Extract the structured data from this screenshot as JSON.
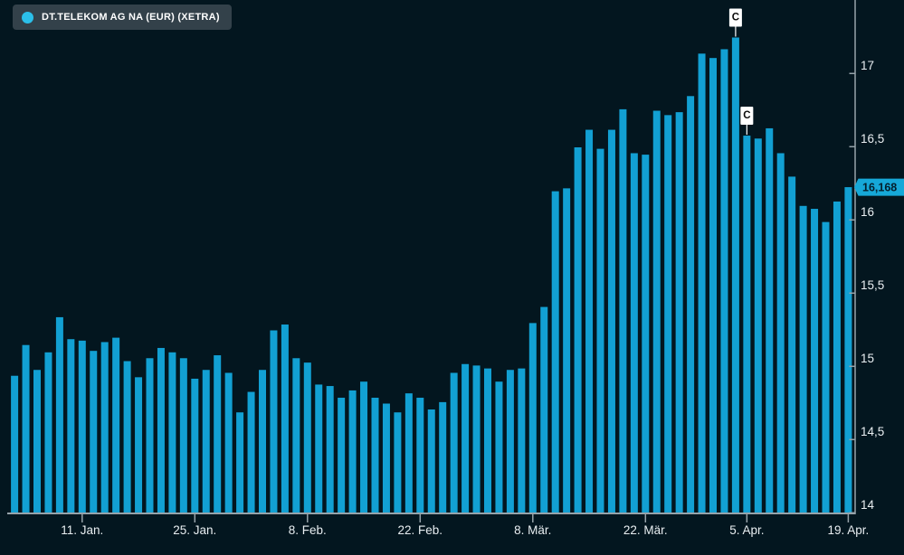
{
  "legend": {
    "label": "DT.TELEKOM AG NA (EUR) (XETRA)"
  },
  "price_label": {
    "display": "16,168"
  },
  "colors": {
    "background": "#03161f",
    "bar": "#12a0d3",
    "axis": "#97a3aa",
    "label_text": "#e8eef1",
    "legend_bg": "#33414a",
    "legend_text": "#ffffff",
    "legend_dot": "#2bbfe9",
    "price_label_bg": "#16a8d8",
    "price_label_text": "#04202e",
    "marker_bg": "#ffffff",
    "marker_text": "#0a0a0a",
    "marker_line": "#ffffff"
  },
  "chart_data": {
    "type": "bar",
    "title": "DT.TELEKOM AG NA (EUR) (XETRA)",
    "xlabel": "",
    "ylabel": "",
    "grid": false,
    "legend_position": "top-left",
    "axis_side": "right",
    "ylim": [
      13.94,
      17.45
    ],
    "values": [
      14.88,
      15.09,
      14.92,
      15.04,
      15.28,
      15.13,
      15.12,
      15.05,
      15.11,
      15.14,
      14.98,
      14.87,
      15.0,
      15.07,
      15.04,
      15.0,
      14.86,
      14.92,
      15.02,
      14.9,
      14.63,
      14.77,
      14.92,
      15.19,
      15.23,
      15.0,
      14.97,
      14.82,
      14.81,
      14.73,
      14.78,
      14.84,
      14.73,
      14.69,
      14.63,
      14.76,
      14.73,
      14.65,
      14.7,
      14.9,
      14.96,
      14.95,
      14.93,
      14.84,
      14.92,
      14.93,
      15.24,
      15.35,
      16.14,
      16.16,
      16.44,
      16.56,
      16.43,
      16.56,
      16.7,
      16.4,
      16.39,
      16.69,
      16.66,
      16.68,
      16.79,
      17.08,
      17.05,
      17.11,
      17.19,
      16.52,
      16.5,
      16.57,
      16.4,
      16.24,
      16.04,
      16.02,
      15.93,
      16.07,
      16.168
    ],
    "current_price": {
      "value": 16.168,
      "display": "16,168"
    },
    "x_axis": {
      "ticks": [
        {
          "label": "11. Jan.",
          "bar_index": 6
        },
        {
          "label": "25. Jan.",
          "bar_index": 16
        },
        {
          "label": "8. Feb.",
          "bar_index": 26
        },
        {
          "label": "22. Feb.",
          "bar_index": 36
        },
        {
          "label": "8. Mär.",
          "bar_index": 46
        },
        {
          "label": "22. Mär.",
          "bar_index": 56
        },
        {
          "label": "5. Apr.",
          "bar_index": 65
        },
        {
          "label": "19. Apr.",
          "bar_index": 74
        }
      ]
    },
    "y_axis": {
      "ticks": [
        {
          "value": 17.0,
          "label": "17"
        },
        {
          "value": 16.5,
          "label": "16,5"
        },
        {
          "value": 16.0,
          "label": "16"
        },
        {
          "value": 15.5,
          "label": "15,5"
        },
        {
          "value": 15.0,
          "label": "15"
        },
        {
          "value": 14.5,
          "label": "14,5"
        },
        {
          "value": 14.0,
          "label": "14"
        }
      ]
    },
    "markers": [
      {
        "bar_index": 64,
        "label": "C"
      },
      {
        "bar_index": 65,
        "label": "C"
      }
    ]
  }
}
